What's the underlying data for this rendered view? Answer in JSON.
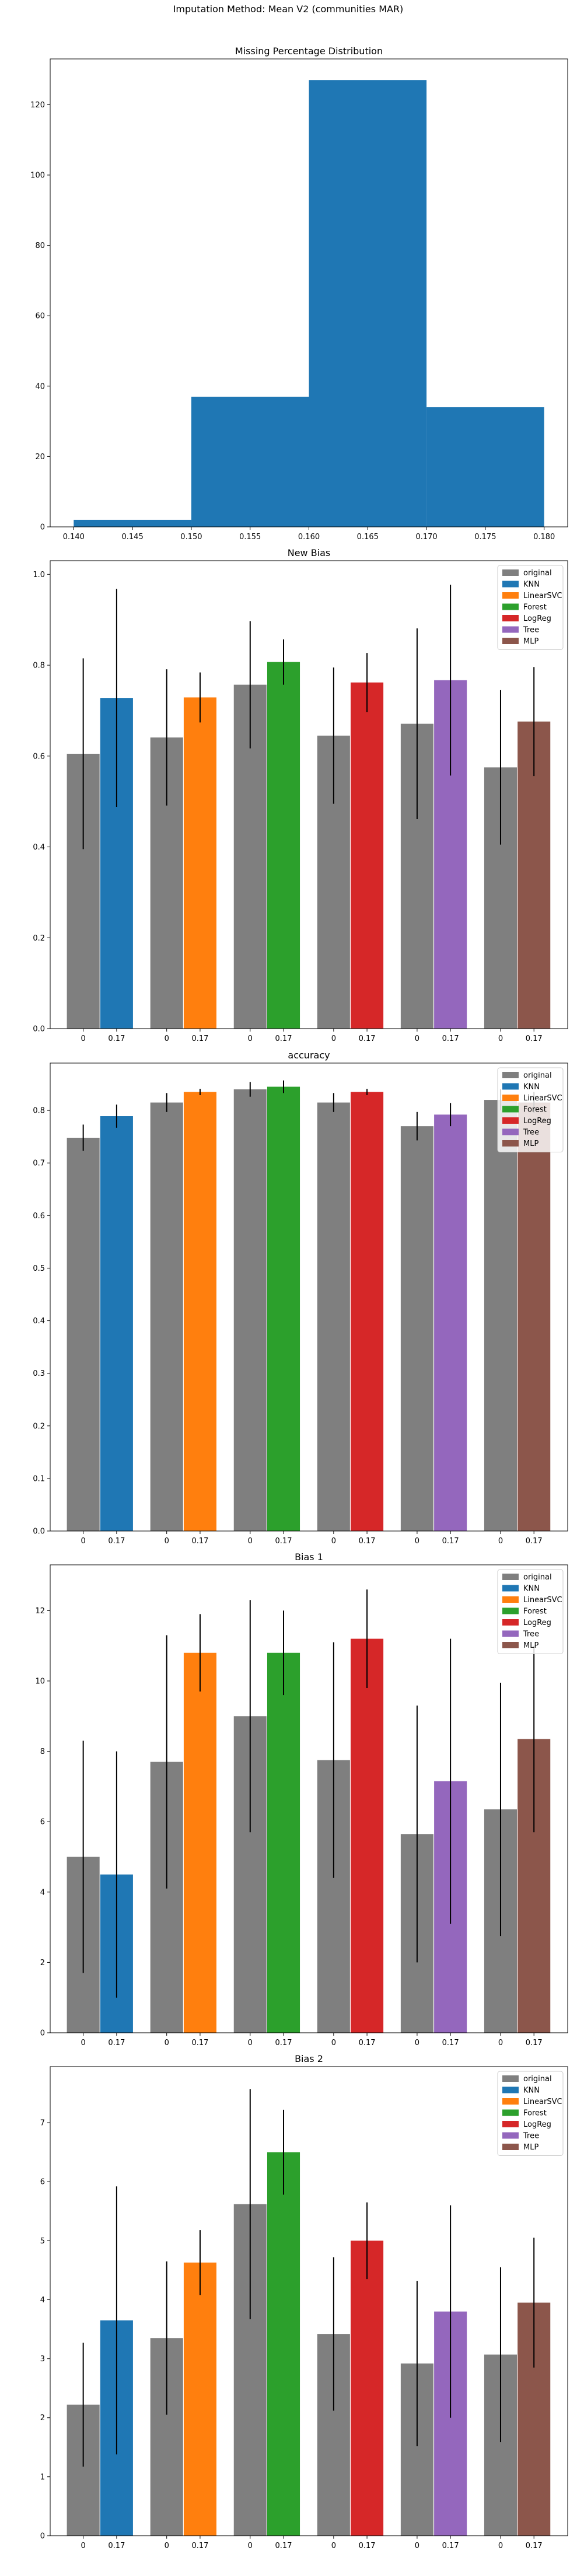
{
  "suptitle": "Imputation Method: Mean V2 (communities MAR)",
  "colors": {
    "original": "#7f7f7f",
    "KNN": "#1f77b4",
    "LinearSVC": "#ff7f0e",
    "Forest": "#2ca02c",
    "LogReg": "#d62728",
    "Tree": "#9467bd",
    "MLP": "#8c564b"
  },
  "chart_data": [
    {
      "type": "bar",
      "title": "Missing Percentage Distribution",
      "subtype": "histogram",
      "bins": [
        {
          "x0": 0.14,
          "x1": 0.15,
          "count": 2
        },
        {
          "x0": 0.15,
          "x1": 0.16,
          "count": 37
        },
        {
          "x0": 0.16,
          "x1": 0.17,
          "count": 127
        },
        {
          "x0": 0.17,
          "x1": 0.18,
          "count": 34
        }
      ],
      "xlim": [
        0.138,
        0.182
      ],
      "ylim": [
        0,
        133
      ],
      "xticks": [
        "0.140",
        "0.145",
        "0.150",
        "0.155",
        "0.160",
        "0.165",
        "0.170",
        "0.175",
        "0.180"
      ],
      "yticks": [
        "0",
        "20",
        "40",
        "60",
        "80",
        "100",
        "120"
      ],
      "grid": false
    },
    {
      "type": "bar",
      "title": "New Bias",
      "legend": [
        "original",
        "KNN",
        "LinearSVC",
        "Forest",
        "LogReg",
        "Tree",
        "MLP"
      ],
      "legend_position": "top-right",
      "ylim": [
        0,
        1.03
      ],
      "yticks": [
        "0.0",
        "0.2",
        "0.4",
        "0.6",
        "0.8",
        "1.0"
      ],
      "groups": [
        {
          "model": "KNN",
          "labels": [
            "0",
            "0.17"
          ],
          "values": [
            0.605,
            0.728
          ],
          "errors": [
            0.21,
            0.24
          ]
        },
        {
          "model": "LinearSVC",
          "labels": [
            "0",
            "0.17"
          ],
          "values": [
            0.641,
            0.729
          ],
          "errors": [
            0.15,
            0.055
          ]
        },
        {
          "model": "Forest",
          "labels": [
            "0",
            "0.17"
          ],
          "values": [
            0.757,
            0.807
          ],
          "errors": [
            0.14,
            0.05
          ]
        },
        {
          "model": "LogReg",
          "labels": [
            "0",
            "0.17"
          ],
          "values": [
            0.645,
            0.762
          ],
          "errors": [
            0.15,
            0.065
          ]
        },
        {
          "model": "Tree",
          "labels": [
            "0",
            "0.17"
          ],
          "values": [
            0.671,
            0.767
          ],
          "errors": [
            0.21,
            0.21
          ]
        },
        {
          "model": "MLP",
          "labels": [
            "0",
            "0.17"
          ],
          "values": [
            0.575,
            0.676
          ],
          "errors": [
            0.17,
            0.12
          ]
        }
      ],
      "grid": false
    },
    {
      "type": "bar",
      "title": "accuracy",
      "legend": [
        "original",
        "KNN",
        "LinearSVC",
        "Forest",
        "LogReg",
        "Tree",
        "MLP"
      ],
      "legend_position": "top-right",
      "ylim": [
        0,
        0.89
      ],
      "yticks": [
        "0.0",
        "0.1",
        "0.2",
        "0.3",
        "0.4",
        "0.5",
        "0.6",
        "0.7",
        "0.8"
      ],
      "groups": [
        {
          "model": "KNN",
          "labels": [
            "0",
            "0.17"
          ],
          "values": [
            0.748,
            0.789
          ],
          "errors": [
            0.025,
            0.022
          ]
        },
        {
          "model": "LinearSVC",
          "labels": [
            "0",
            "0.17"
          ],
          "values": [
            0.815,
            0.835
          ],
          "errors": [
            0.018,
            0.006
          ]
        },
        {
          "model": "Forest",
          "labels": [
            "0",
            "0.17"
          ],
          "values": [
            0.84,
            0.845
          ],
          "errors": [
            0.014,
            0.012
          ]
        },
        {
          "model": "LogReg",
          "labels": [
            "0",
            "0.17"
          ],
          "values": [
            0.815,
            0.835
          ],
          "errors": [
            0.018,
            0.006
          ]
        },
        {
          "model": "Tree",
          "labels": [
            "0",
            "0.17"
          ],
          "values": [
            0.77,
            0.792
          ],
          "errors": [
            0.027,
            0.022
          ]
        },
        {
          "model": "MLP",
          "labels": [
            "0",
            "0.17"
          ],
          "values": [
            0.82,
            0.815
          ],
          "errors": [
            0.02,
            0.02
          ]
        }
      ],
      "grid": false
    },
    {
      "type": "bar",
      "title": "Bias 1",
      "legend": [
        "original",
        "KNN",
        "LinearSVC",
        "Forest",
        "LogReg",
        "Tree",
        "MLP"
      ],
      "legend_position": "top-right",
      "ylim": [
        0,
        13.3
      ],
      "yticks": [
        "0",
        "2",
        "4",
        "6",
        "8",
        "10",
        "12"
      ],
      "groups": [
        {
          "model": "KNN",
          "labels": [
            "0",
            "0.17"
          ],
          "values": [
            5.0,
            4.5
          ],
          "errors": [
            3.3,
            3.5
          ]
        },
        {
          "model": "LinearSVC",
          "labels": [
            "0",
            "0.17"
          ],
          "values": [
            7.7,
            10.8
          ],
          "errors": [
            3.6,
            1.1
          ]
        },
        {
          "model": "Forest",
          "labels": [
            "0",
            "0.17"
          ],
          "values": [
            9.0,
            10.8
          ],
          "errors": [
            3.3,
            1.2
          ]
        },
        {
          "model": "LogReg",
          "labels": [
            "0",
            "0.17"
          ],
          "values": [
            7.75,
            11.2
          ],
          "errors": [
            3.35,
            1.4
          ]
        },
        {
          "model": "Tree",
          "labels": [
            "0",
            "0.17"
          ],
          "values": [
            5.65,
            7.15
          ],
          "errors": [
            3.65,
            4.05
          ]
        },
        {
          "model": "MLP",
          "labels": [
            "0",
            "0.17"
          ],
          "values": [
            6.35,
            8.35
          ],
          "errors": [
            3.6,
            2.65
          ]
        }
      ],
      "grid": false
    },
    {
      "type": "bar",
      "title": "Bias 2",
      "legend": [
        "original",
        "KNN",
        "LinearSVC",
        "Forest",
        "LogReg",
        "Tree",
        "MLP"
      ],
      "legend_position": "top-right",
      "ylim": [
        0,
        7.95
      ],
      "yticks": [
        "0",
        "1",
        "2",
        "3",
        "4",
        "5",
        "6",
        "7"
      ],
      "groups": [
        {
          "model": "KNN",
          "labels": [
            "0",
            "0.17"
          ],
          "values": [
            2.22,
            3.65
          ],
          "errors": [
            1.05,
            2.27
          ]
        },
        {
          "model": "LinearSVC",
          "labels": [
            "0",
            "0.17"
          ],
          "values": [
            3.35,
            4.63
          ],
          "errors": [
            1.3,
            0.55
          ]
        },
        {
          "model": "Forest",
          "labels": [
            "0",
            "0.17"
          ],
          "values": [
            5.62,
            6.5
          ],
          "errors": [
            1.95,
            0.72
          ]
        },
        {
          "model": "LogReg",
          "labels": [
            "0",
            "0.17"
          ],
          "values": [
            3.42,
            5.0
          ],
          "errors": [
            1.3,
            0.65
          ]
        },
        {
          "model": "Tree",
          "labels": [
            "0",
            "0.17"
          ],
          "values": [
            2.92,
            3.8
          ],
          "errors": [
            1.4,
            1.8
          ]
        },
        {
          "model": "MLP",
          "labels": [
            "0",
            "0.17"
          ],
          "values": [
            3.07,
            3.95
          ],
          "errors": [
            1.48,
            1.1
          ]
        }
      ],
      "grid": false
    }
  ]
}
